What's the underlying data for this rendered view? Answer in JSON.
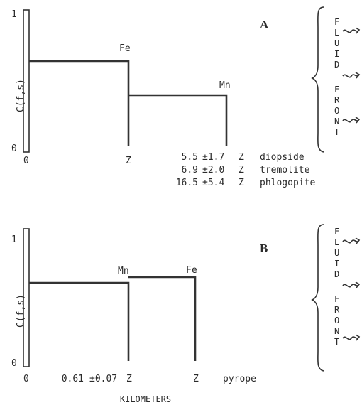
{
  "panel_a": {
    "label": "A",
    "y_axis_label": "C(f,s)",
    "y_tick_top": "1",
    "y_tick_bottom": "0",
    "x_tick_origin": "0",
    "x_tick_z": "Z",
    "step_label_1": "Fe",
    "step_label_2": "Mn",
    "minerals": [
      {
        "value": "5.5",
        "error": "±1.7",
        "unit": "Z",
        "name": "diopside"
      },
      {
        "value": "6.9",
        "error": "±2.0",
        "unit": "Z",
        "name": "tremolite"
      },
      {
        "value": "16.5",
        "error": "±5.4",
        "unit": "Z",
        "name": "phlogopite"
      }
    ],
    "front_letters": [
      "F",
      "L",
      "U",
      "I",
      "D",
      "F",
      "R",
      "O",
      "N",
      "T"
    ]
  },
  "panel_b": {
    "label": "B",
    "y_axis_label": "C(f,s)",
    "y_tick_top": "1",
    "y_tick_bottom": "0",
    "x_tick_origin": "0",
    "x_tick_z": "Z",
    "step_label_1": "Mn",
    "step_label_2": "Fe",
    "minerals": [
      {
        "value": "0.61",
        "error": "±0.07",
        "unit": "Z",
        "name": "pyrope"
      }
    ],
    "front_letters": [
      "F",
      "L",
      "U",
      "I",
      "D",
      "F",
      "R",
      "O",
      "N",
      "T"
    ]
  },
  "x_axis_title": "KILOMETERS",
  "icons": {
    "wavy_arrow": "wavy-arrow-icon",
    "brace": "curly-brace-icon"
  },
  "colors": {
    "ink": "#333333",
    "text": "#2a2a2a",
    "background": "#ffffff"
  }
}
